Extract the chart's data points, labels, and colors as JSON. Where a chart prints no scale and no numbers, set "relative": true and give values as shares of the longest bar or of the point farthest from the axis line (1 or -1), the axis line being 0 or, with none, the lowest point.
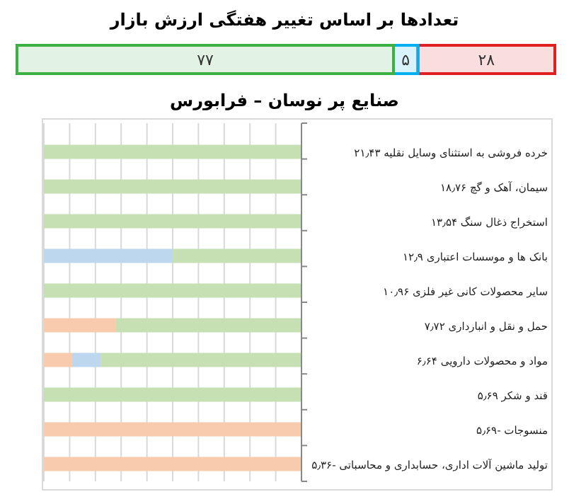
{
  "chart_data": [
    {
      "type": "bar",
      "title": "تعدادها بر اساس تغییر هفتگی ارزش بازار",
      "orientation": "horizontal",
      "stacked": true,
      "categories": [
        null
      ],
      "series": [
        {
          "color": "#e02020",
          "values": [
            28
          ],
          "value_labels": [
            "۲۸"
          ]
        },
        {
          "color": "#00b0f0",
          "values": [
            5
          ],
          "value_labels": [
            "۵"
          ]
        },
        {
          "color": "#3cb043",
          "values": [
            77
          ],
          "value_labels": [
            "۷۷"
          ]
        }
      ]
    },
    {
      "type": "bar",
      "title": "صنایع پر نوسان – فرابورس",
      "orientation": "horizontal",
      "stacked": true,
      "relative": true,
      "grid": "x",
      "categories": [
        "خرده فروشی به استثنای وسایل نقلیه   ۲۱٫۴۳",
        "سیمان، آهک و گچ   ۱۸٫۷۶",
        "استخراج ذغال سنگ   ۱۳٫۵۴",
        "بانک ها و موسسات اعتباری   ۱۲٫۹",
        "سایر محصولات کانی غیر فلزی   ۱۰٫۹۶",
        "حمل و نقل و انبارداری   ۷٫۷۲",
        "مواد و محصولات دارویی   ۶٫۶۴",
        "قند و شکر   ۵٫۶۹",
        "منسوجات   -۵٫۶۹",
        "تولید ماشین آلات اداری، حسابداری و محاسباتی   -۵٫۳۶"
      ],
      "series": [
        {
          "color": "#c6e0b4",
          "values": [
            1,
            1,
            1,
            0.5,
            1,
            0.72,
            0.78,
            1,
            0,
            0
          ]
        },
        {
          "color": "#bdd7ee",
          "values": [
            0,
            0,
            0,
            0.5,
            0,
            0,
            0.11,
            0,
            0,
            0
          ]
        },
        {
          "color": "#f8cbad",
          "values": [
            0,
            0,
            0,
            0,
            0,
            0.28,
            0.11,
            0,
            1,
            1
          ]
        }
      ]
    }
  ]
}
